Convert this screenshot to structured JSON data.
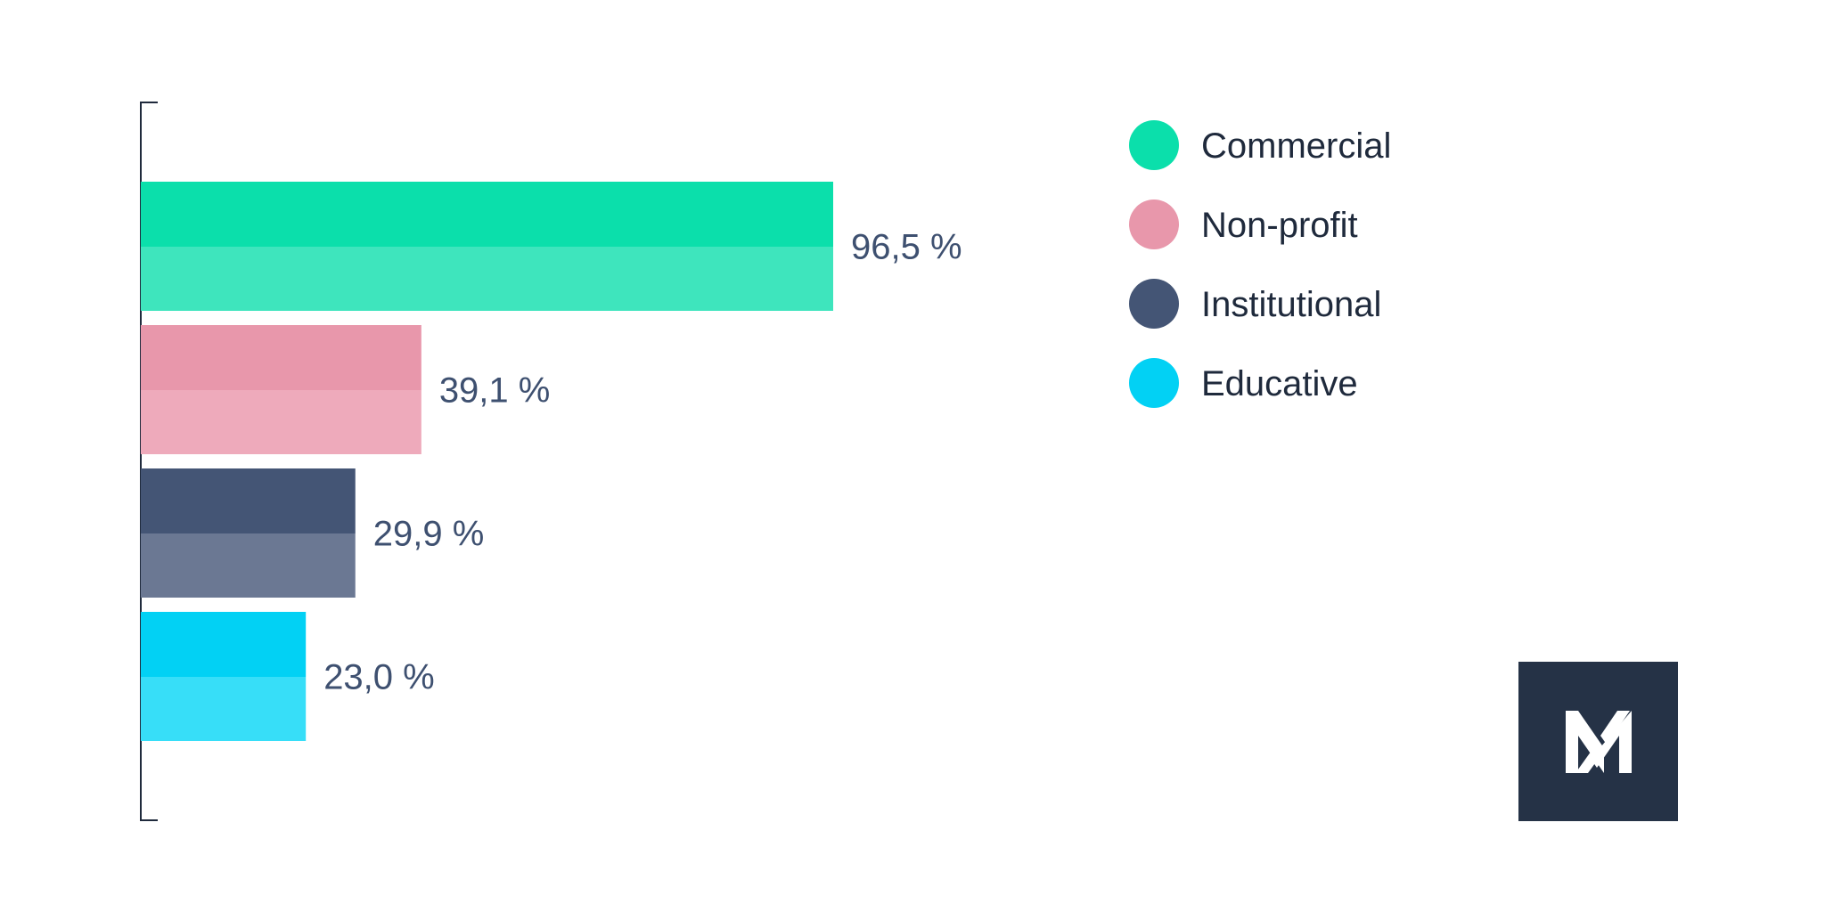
{
  "chart_data": {
    "type": "bar",
    "orientation": "horizontal",
    "categories": [
      "Commercial",
      "Non-profit",
      "Institutional",
      "Educative"
    ],
    "values": [
      96.5,
      39.1,
      29.9,
      23.0
    ],
    "value_labels": [
      "96,5 %",
      "39,1 %",
      "29,9 %",
      "23,0 %"
    ],
    "xlim": [
      0,
      100
    ],
    "grid": false,
    "legend_position": "top-right",
    "series_colors": [
      {
        "top": "#0bdfab",
        "bottom": "#3ee5bd"
      },
      {
        "top": "#e897ab",
        "bottom": "#eeaabb"
      },
      {
        "top": "#445575",
        "bottom": "#6b7893"
      },
      {
        "top": "#02d1f4",
        "bottom": "#37def8"
      }
    ],
    "legend": [
      {
        "label": "Commercial",
        "color": "#0bdfab"
      },
      {
        "label": "Non-profit",
        "color": "#e897ab"
      },
      {
        "label": "Institutional",
        "color": "#445575"
      },
      {
        "label": "Educative",
        "color": "#02d1f4"
      }
    ]
  },
  "logo": {
    "icon": "nw-monogram-logo",
    "background": "#253246",
    "foreground": "#ffffff"
  }
}
